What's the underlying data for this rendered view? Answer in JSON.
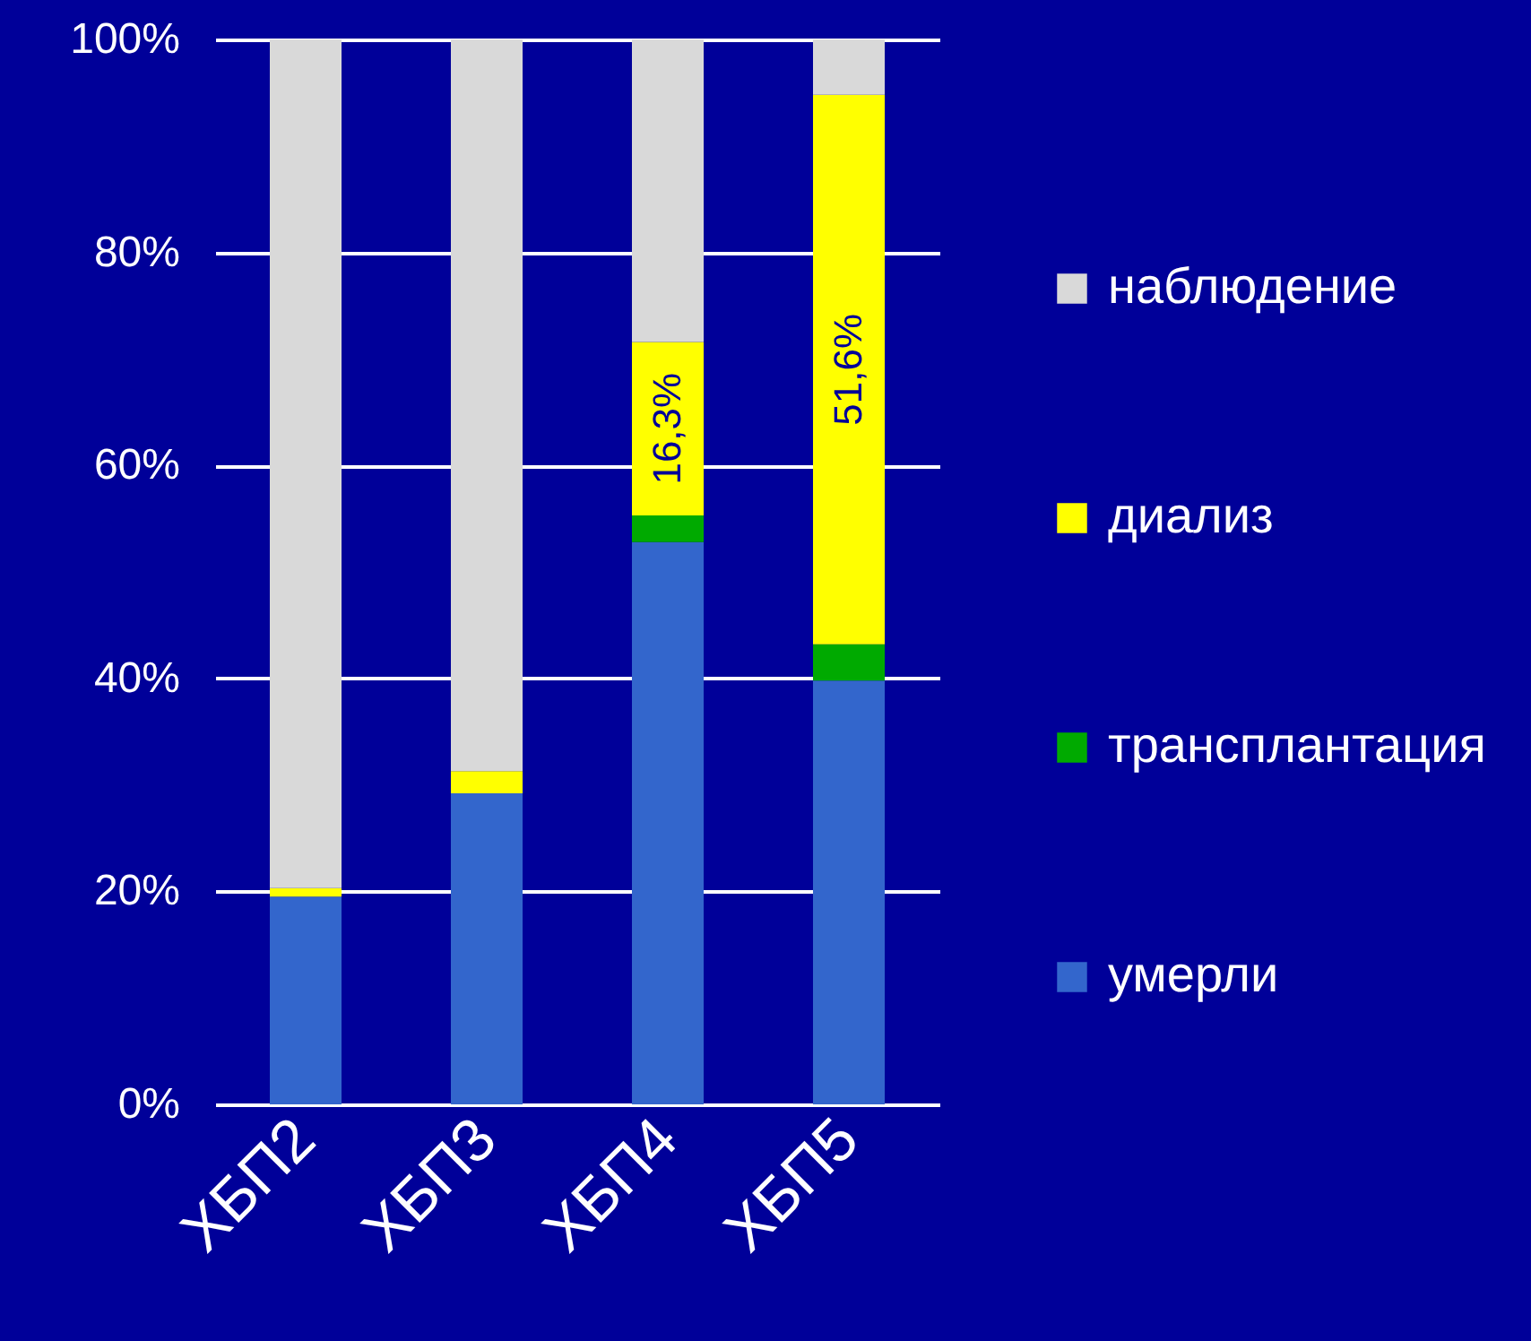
{
  "chart_data": {
    "type": "bar",
    "stacked": true,
    "categories": [
      "ХБП2",
      "ХБП3",
      "ХБП4",
      "ХБП5"
    ],
    "series": [
      {
        "name": "умерли",
        "color": "#3366cc",
        "values": [
          19.5,
          29.2,
          52.8,
          39.8
        ]
      },
      {
        "name": "трансплантация",
        "color": "#00aa00",
        "values": [
          0,
          0,
          2.5,
          3.4
        ]
      },
      {
        "name": "диализ",
        "color": "#ffff00",
        "values": [
          0.8,
          2.1,
          16.3,
          51.6
        ],
        "value_labels": [
          null,
          null,
          "16,3%",
          "51,6%"
        ]
      },
      {
        "name": "наблюдение",
        "color": "#d9d9d9",
        "values": [
          79.7,
          68.7,
          28.4,
          5.2
        ]
      }
    ],
    "ylim": [
      0,
      100
    ],
    "yticks": [
      {
        "value": 0,
        "label": "0%"
      },
      {
        "value": 20,
        "label": "20%"
      },
      {
        "value": 40,
        "label": "40%"
      },
      {
        "value": 60,
        "label": "60%"
      },
      {
        "value": 80,
        "label": "80%"
      },
      {
        "value": 100,
        "label": "100%"
      }
    ],
    "grid": "y",
    "legend": "right"
  }
}
